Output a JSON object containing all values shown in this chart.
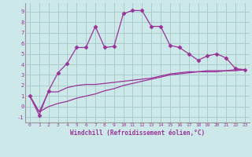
{
  "xlabel": "Windchill (Refroidissement éolien,°C)",
  "background_color": "#cce8e8",
  "grid_color": "#aacccc",
  "line_color": "#993399",
  "x_ticks": [
    0,
    1,
    2,
    3,
    4,
    5,
    6,
    7,
    8,
    9,
    10,
    11,
    12,
    13,
    14,
    15,
    16,
    17,
    18,
    19,
    20,
    21,
    22,
    23
  ],
  "y_ticks": [
    -1,
    0,
    1,
    2,
    3,
    4,
    5,
    6,
    7,
    8,
    9
  ],
  "ylim": [
    -1.5,
    9.8
  ],
  "xlim": [
    -0.5,
    23.5
  ],
  "line1_x": [
    0,
    1,
    2,
    3,
    4,
    5,
    6,
    7,
    8,
    9,
    10,
    11,
    12,
    13,
    14,
    15,
    16,
    17,
    18,
    19,
    20,
    21,
    22,
    23
  ],
  "line1_y": [
    1.0,
    -0.8,
    1.5,
    3.2,
    4.1,
    5.6,
    5.6,
    7.6,
    5.6,
    5.7,
    8.8,
    9.1,
    9.1,
    7.6,
    7.6,
    5.8,
    5.6,
    5.0,
    4.4,
    4.8,
    5.0,
    4.6,
    3.6,
    3.5
  ],
  "line2_x": [
    0,
    1,
    2,
    3,
    4,
    5,
    6,
    7,
    8,
    9,
    10,
    11,
    12,
    13,
    14,
    15,
    16,
    17,
    18,
    19,
    20,
    21,
    22,
    23
  ],
  "line2_y": [
    1.0,
    -0.5,
    1.4,
    1.4,
    1.8,
    2.0,
    2.1,
    2.1,
    2.2,
    2.3,
    2.4,
    2.5,
    2.6,
    2.7,
    2.9,
    3.1,
    3.2,
    3.3,
    3.3,
    3.4,
    3.4,
    3.4,
    3.5,
    3.5
  ],
  "line3_x": [
    0,
    1,
    2,
    3,
    4,
    5,
    6,
    7,
    8,
    9,
    10,
    11,
    12,
    13,
    14,
    15,
    16,
    17,
    18,
    19,
    20,
    21,
    22,
    23
  ],
  "line3_y": [
    1.0,
    -0.5,
    0.0,
    0.3,
    0.5,
    0.8,
    1.0,
    1.2,
    1.5,
    1.7,
    2.0,
    2.2,
    2.4,
    2.6,
    2.8,
    3.0,
    3.1,
    3.2,
    3.3,
    3.3,
    3.3,
    3.4,
    3.4,
    3.5
  ]
}
